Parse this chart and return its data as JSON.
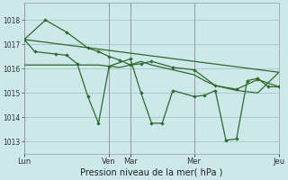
{
  "background_color": "#cce8e8",
  "grid_color": "#aacccc",
  "line_color": "#2d6a2d",
  "xlabel": "Pression niveau de la mer( hPa )",
  "ylim": [
    1012.5,
    1018.7
  ],
  "yticks": [
    1013,
    1014,
    1015,
    1016,
    1017,
    1018
  ],
  "xtick_labels": [
    "Lun",
    "",
    "Ven",
    "Mar",
    "",
    "Mer",
    "",
    "Jeu"
  ],
  "xtick_positions": [
    0,
    2,
    4,
    5,
    6,
    8,
    10,
    12
  ],
  "xtick_show": [
    "Lun",
    "Ven",
    "Mar",
    "Mer",
    "Jeu"
  ],
  "xtick_show_pos": [
    0,
    4,
    5,
    8,
    12
  ],
  "xlim": [
    0,
    12
  ],
  "figsize": [
    3.2,
    2.0
  ],
  "dpi": 100,
  "series1_x": [
    0,
    12
  ],
  "series1_y": [
    1017.2,
    1015.85
  ],
  "series2_x": [
    0,
    1.0,
    2.0,
    3.0,
    3.5,
    4.0,
    4.5,
    5.0,
    5.5,
    6.0,
    7.0,
    8.0,
    9.0,
    10.0,
    11.0,
    12.0
  ],
  "series2_y": [
    1017.2,
    1018.0,
    1017.5,
    1016.85,
    1016.7,
    1016.5,
    1016.35,
    1016.15,
    1016.2,
    1016.3,
    1016.05,
    1015.95,
    1015.3,
    1015.15,
    1015.55,
    1015.25
  ],
  "series3_x": [
    0,
    0.5,
    1.5,
    2.0,
    2.5,
    3.0,
    3.5,
    4.0,
    5.0,
    5.5,
    6.0,
    6.5,
    7.0,
    8.0,
    8.5,
    9.0,
    9.5,
    10.0,
    10.5,
    11.0,
    11.5,
    12.0
  ],
  "series3_y": [
    1017.2,
    1016.7,
    1016.6,
    1016.55,
    1016.2,
    1014.85,
    1013.75,
    1016.1,
    1016.4,
    1015.0,
    1013.75,
    1013.75,
    1015.1,
    1014.85,
    1014.9,
    1015.1,
    1013.05,
    1013.1,
    1015.5,
    1015.6,
    1015.25,
    1015.25
  ],
  "series4_x": [
    0,
    1.0,
    2.0,
    3.0,
    3.5,
    4.0,
    4.5,
    5.0,
    5.5,
    6.0,
    7.0,
    8.0,
    8.5,
    9.0,
    10.0,
    11.0,
    12.0
  ],
  "series4_y": [
    1016.15,
    1016.15,
    1016.15,
    1016.15,
    1016.15,
    1016.1,
    1016.05,
    1016.15,
    1016.3,
    1016.15,
    1015.95,
    1015.75,
    1015.5,
    1015.3,
    1015.1,
    1015.0,
    1015.85
  ]
}
